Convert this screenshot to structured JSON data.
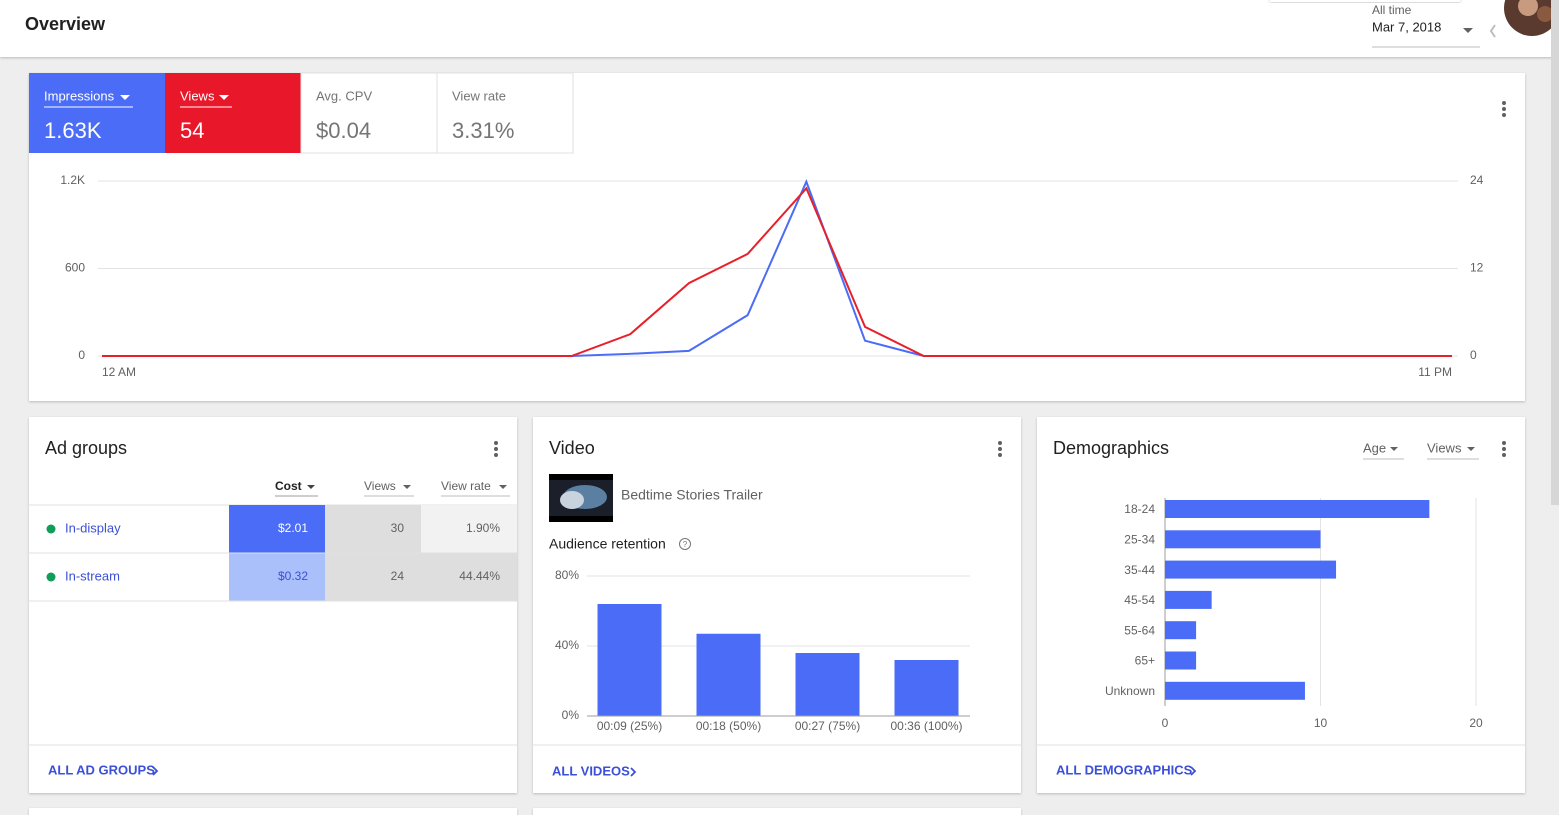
{
  "header": {
    "title": "Overview",
    "range_label": "All time",
    "date": "Mar 7, 2018"
  },
  "metrics": [
    {
      "label": "Impressions",
      "value": "1.63K"
    },
    {
      "label": "Views",
      "value": "54"
    },
    {
      "label": "Avg. CPV",
      "value": "$0.04"
    },
    {
      "label": "View rate",
      "value": "3.31%"
    }
  ],
  "ad_groups": {
    "title": "Ad groups",
    "columns": [
      "Cost",
      "Views",
      "View rate"
    ],
    "rows": [
      [
        "In-display",
        "$2.01",
        "30",
        "1.90%"
      ],
      [
        "In-stream",
        "$0.32",
        "24",
        "44.44%"
      ]
    ],
    "footer": "ALL AD GROUPS"
  },
  "video": {
    "title": "Video",
    "name": "Bedtime Stories Trailer",
    "subtitle": "Audience retention",
    "footer": "ALL VIDEOS"
  },
  "demographics": {
    "title": "Demographics",
    "dimension": "Age",
    "metric": "Views",
    "footer": "ALL DEMOGRAPHICS"
  },
  "chart_data": [
    {
      "type": "line",
      "categories": [
        "12 AM",
        null,
        null,
        null,
        null,
        null,
        null,
        null,
        null,
        null,
        null,
        null,
        null,
        null,
        null,
        null,
        null,
        null,
        null,
        null,
        null,
        null,
        null,
        "11 PM"
      ],
      "series": [
        {
          "name": "Impressions",
          "color": "#4a6cf7",
          "values": [
            0,
            0,
            0,
            0,
            0,
            0,
            0,
            0,
            0,
            15,
            35,
            280,
            1195,
            105,
            0,
            0,
            0,
            0,
            0,
            0,
            0,
            0,
            0,
            0
          ]
        },
        {
          "name": "Views",
          "color": "#e8202a",
          "axis": "y2",
          "values": [
            0,
            0,
            0,
            0,
            0,
            0,
            0,
            0,
            0,
            3,
            10,
            14,
            23,
            4,
            0,
            0,
            0,
            0,
            0,
            0,
            0,
            0,
            0,
            0
          ]
        }
      ],
      "ylim": [
        0,
        1200
      ],
      "yticks": [
        0,
        600,
        {
          "value": 1200,
          "label": "1.2K"
        }
      ],
      "y2lim": [
        0,
        24
      ],
      "y2ticks": [
        0,
        12,
        24
      ],
      "grid": true
    },
    {
      "type": "bar",
      "categories": [
        "00:09 (25%)",
        "00:18 (50%)",
        "00:27 (75%)",
        "00:36 (100%)"
      ],
      "values": [
        64,
        47,
        36,
        32
      ],
      "color": "#4a6cf7",
      "ylim": [
        0,
        80
      ],
      "yticks": [
        {
          "value": 0,
          "label": "0%"
        },
        {
          "value": 40,
          "label": "40%"
        },
        {
          "value": 80,
          "label": "80%"
        }
      ],
      "grid": true
    },
    {
      "type": "hbar",
      "categories": [
        "18-24",
        "25-34",
        "35-44",
        "45-54",
        "55-64",
        "65+",
        "Unknown"
      ],
      "values": [
        17,
        10,
        11,
        3,
        2,
        2,
        9
      ],
      "color": "#4a6cf7",
      "xlim": [
        0,
        20
      ],
      "xticks": [
        0,
        10,
        20
      ],
      "grid": true
    }
  ]
}
